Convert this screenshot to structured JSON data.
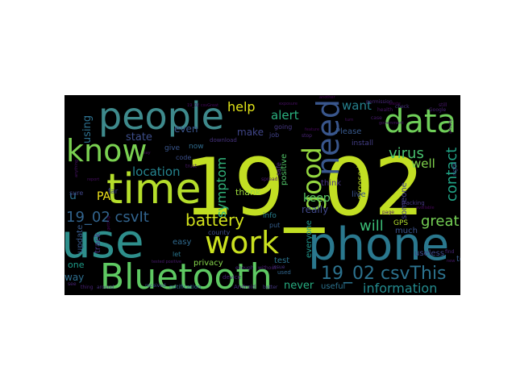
{
  "chart_data": {
    "type": "wordcloud",
    "colormap": "viridis",
    "background": "#000000",
    "words": [
      {
        "text": "19_02",
        "weight": 1.0,
        "color": "#c2df23",
        "rotate": false
      },
      {
        "text": "use",
        "weight": 0.76,
        "color": "#2e8f8c",
        "rotate": false
      },
      {
        "text": "phone",
        "weight": 0.74,
        "color": "#2a788e",
        "rotate": false
      },
      {
        "text": "time",
        "weight": 0.68,
        "color": "#b5de2b",
        "rotate": false
      },
      {
        "text": "people",
        "weight": 0.62,
        "color": "#3e8a8c",
        "rotate": false
      },
      {
        "text": "Bluetooth",
        "weight": 0.6,
        "color": "#5ec962",
        "rotate": false
      },
      {
        "text": "know",
        "weight": 0.52,
        "color": "#7ad151",
        "rotate": false
      },
      {
        "text": "work",
        "weight": 0.52,
        "color": "#cae11f",
        "rotate": false
      },
      {
        "text": "data",
        "weight": 0.54,
        "color": "#6ece58",
        "rotate": false
      },
      {
        "text": "need",
        "weight": 0.5,
        "color": "#39568c",
        "rotate": true
      },
      {
        "text": "good",
        "weight": 0.44,
        "color": "#95d840",
        "rotate": true
      },
      {
        "text": "19_02 csvThis",
        "weight": 0.3,
        "color": "#2c728e",
        "rotate": false
      },
      {
        "text": "battery",
        "weight": 0.26,
        "color": "#d2e21b",
        "rotate": false
      },
      {
        "text": "19_02 csvIt",
        "weight": 0.24,
        "color": "#32648e",
        "rotate": false
      },
      {
        "text": "virus",
        "weight": 0.24,
        "color": "#48c16e",
        "rotate": false
      },
      {
        "text": "contact",
        "weight": 0.24,
        "color": "#20a486",
        "rotate": true
      },
      {
        "text": "great",
        "weight": 0.24,
        "color": "#75d054",
        "rotate": false
      },
      {
        "text": "will",
        "weight": 0.24,
        "color": "#3bbb75",
        "rotate": false
      },
      {
        "text": "information",
        "weight": 0.22,
        "color": "#238a8d",
        "rotate": false
      },
      {
        "text": "location",
        "weight": 0.21,
        "color": "#25838e",
        "rotate": false
      },
      {
        "text": "symptom",
        "weight": 0.22,
        "color": "#31b57b",
        "rotate": true
      },
      {
        "text": "help",
        "weight": 0.22,
        "color": "#e2e418",
        "rotate": false
      },
      {
        "text": "alert",
        "weight": 0.21,
        "color": "#2ab07f",
        "rotate": false
      },
      {
        "text": "want",
        "weight": 0.21,
        "color": "#26828e",
        "rotate": false
      },
      {
        "text": "well",
        "weight": 0.21,
        "color": "#80d34c",
        "rotate": false
      },
      {
        "text": "keep",
        "weight": 0.2,
        "color": "#5cc863",
        "rotate": false
      },
      {
        "text": "state",
        "weight": 0.19,
        "color": "#3d4e8a",
        "rotate": false
      },
      {
        "text": "even",
        "weight": 0.18,
        "color": "#3a548c",
        "rotate": false
      },
      {
        "text": "make",
        "weight": 0.18,
        "color": "#404688",
        "rotate": false
      },
      {
        "text": "using",
        "weight": 0.18,
        "color": "#2d708e",
        "rotate": true
      },
      {
        "text": "way",
        "weight": 0.18,
        "color": "#2e6e8e",
        "rotate": false
      },
      {
        "text": "never",
        "weight": 0.18,
        "color": "#27ad81",
        "rotate": false
      },
      {
        "text": "really",
        "weight": 0.16,
        "color": "#3f4788",
        "rotate": false
      },
      {
        "text": "one",
        "weight": 0.16,
        "color": "#1e9c89",
        "rotate": false
      },
      {
        "text": "PA",
        "weight": 0.16,
        "color": "#f1e51d",
        "rotate": false
      },
      {
        "text": "thank",
        "weight": 0.14,
        "color": "#9bd93c",
        "rotate": false
      },
      {
        "text": "exposed",
        "weight": 0.14,
        "color": "#bddf26",
        "rotate": true
      },
      {
        "text": "positive",
        "weight": 0.13,
        "color": "#52c569",
        "rotate": true
      },
      {
        "text": "think",
        "weight": 0.13,
        "color": "#46337f",
        "rotate": false
      },
      {
        "text": "everyone",
        "weight": 0.13,
        "color": "#1f968b",
        "rotate": true
      },
      {
        "text": "privacy",
        "weight": 0.12,
        "color": "#85d54a",
        "rotate": false
      },
      {
        "text": "easy",
        "weight": 0.12,
        "color": "#306a8e",
        "rotate": false
      },
      {
        "text": "track",
        "weight": 0.12,
        "color": "#453581",
        "rotate": true
      },
      {
        "text": "update",
        "weight": 0.12,
        "color": "#375b8d",
        "rotate": true
      },
      {
        "text": "test",
        "weight": 0.12,
        "color": "#2b748e",
        "rotate": false
      },
      {
        "text": "useless",
        "weight": 0.12,
        "color": "#3e4989",
        "rotate": false
      },
      {
        "text": "number",
        "weight": 0.12,
        "color": "#472d7b",
        "rotate": false
      },
      {
        "text": "tell",
        "weight": 0.12,
        "color": "#365d8d",
        "rotate": false
      },
      {
        "text": "much",
        "weight": 0.12,
        "color": "#3b528b",
        "rotate": false
      },
      {
        "text": "useful",
        "weight": 0.11,
        "color": "#2c728e",
        "rotate": false
      },
      {
        "text": "Please",
        "weight": 0.11,
        "color": "#38598c",
        "rotate": false
      },
      {
        "text": "install",
        "weight": 0.1,
        "color": "#433e85",
        "rotate": false
      },
      {
        "text": "someone",
        "weight": 0.11,
        "color": "#424086",
        "rotate": true
      },
      {
        "text": "live",
        "weight": 0.11,
        "color": "#3b528b",
        "rotate": false
      },
      {
        "text": "GPS",
        "weight": 0.1,
        "color": "#b2dd2d",
        "rotate": false
      },
      {
        "text": "info",
        "weight": 0.1,
        "color": "#277f8e",
        "rotate": false
      },
      {
        "text": "now",
        "weight": 0.1,
        "color": "#2f6c8e",
        "rotate": false
      },
      {
        "text": "give",
        "weight": 0.1,
        "color": "#39568c",
        "rotate": false
      },
      {
        "text": "far",
        "weight": 0.1,
        "color": "#404688",
        "rotate": false
      },
      {
        "text": "u",
        "weight": 0.14,
        "color": "#2d708e",
        "rotate": false
      },
      {
        "text": "let",
        "weight": 0.09,
        "color": "#2a778e",
        "rotate": false
      },
      {
        "text": "sure",
        "weight": 0.08,
        "color": "#404688",
        "rotate": false
      },
      {
        "text": "put",
        "weight": 0.09,
        "color": "#355f8d",
        "rotate": false
      },
      {
        "text": "safe",
        "weight": 0.08,
        "color": "#482576",
        "rotate": true
      },
      {
        "text": "job",
        "weight": 0.08,
        "color": "#414287",
        "rotate": false
      },
      {
        "text": "going",
        "weight": 0.08,
        "color": "#453882",
        "rotate": false
      },
      {
        "text": "code",
        "weight": 0.08,
        "color": "#3c4f8a",
        "rotate": false
      },
      {
        "text": "county",
        "weight": 0.08,
        "color": "#3e4a89",
        "rotate": false
      },
      {
        "text": "used",
        "weight": 0.07,
        "color": "#31668e",
        "rotate": false
      },
      {
        "text": "right",
        "weight": 0.07,
        "color": "#433e85",
        "rotate": true
      },
      {
        "text": "tracking",
        "weight": 0.07,
        "color": "#453781",
        "rotate": false
      },
      {
        "text": "device",
        "weight": 0.06,
        "color": "#482173",
        "rotate": false
      },
      {
        "text": "Android",
        "weight": 0.06,
        "color": "#472c7a",
        "rotate": false
      },
      {
        "text": "notification",
        "weight": 0.06,
        "color": "#31688e",
        "rotate": false
      },
      {
        "text": "download",
        "weight": 0.06,
        "color": "#46327e",
        "rotate": false
      },
      {
        "text": "received",
        "weight": 0.06,
        "color": "#3e4c8a",
        "rotate": false
      },
      {
        "text": "enough",
        "weight": 0.06,
        "color": "#482979",
        "rotate": false
      },
      {
        "text": "issue",
        "weight": 0.06,
        "color": "#463480",
        "rotate": false
      },
      {
        "text": "without",
        "weight": 0.06,
        "color": "#481d6f",
        "rotate": false
      },
      {
        "text": "better",
        "weight": 0.06,
        "color": "#453882",
        "rotate": false
      },
      {
        "text": "stop",
        "weight": 0.06,
        "color": "#482475",
        "rotate": false
      },
      {
        "text": "spread",
        "weight": 0.05,
        "color": "#48186a",
        "rotate": false
      },
      {
        "text": "trust",
        "weight": 0.05,
        "color": "#481769",
        "rotate": false
      },
      {
        "text": "page",
        "weight": 0.05,
        "color": "#471365",
        "rotate": false
      },
      {
        "text": "find",
        "weight": 0.05,
        "color": "#482576",
        "rotate": false
      },
      {
        "text": "still",
        "weight": 0.05,
        "color": "#48186a",
        "rotate": false
      },
      {
        "text": "check",
        "weight": 0.05,
        "color": "#46327e",
        "rotate": false
      },
      {
        "text": "permission",
        "weight": 0.05,
        "color": "#482878",
        "rotate": false
      },
      {
        "text": "case",
        "weight": 0.05,
        "color": "#481a6c",
        "rotate": false
      },
      {
        "text": "health",
        "weight": 0.05,
        "color": "#481467",
        "rotate": false
      },
      {
        "text": "Google",
        "weight": 0.05,
        "color": "#482374",
        "rotate": false
      },
      {
        "text": "new",
        "weight": 0.04,
        "color": "#48186a",
        "rotate": false
      },
      {
        "text": "around",
        "weight": 0.05,
        "color": "#46307e",
        "rotate": false
      },
      {
        "text": "thing",
        "weight": 0.05,
        "color": "#482173",
        "rotate": false
      },
      {
        "text": "see",
        "weight": 0.05,
        "color": "#482576",
        "rotate": false
      },
      {
        "text": "say",
        "weight": 0.04,
        "color": "#470e61",
        "rotate": false
      },
      {
        "text": "tested positive",
        "weight": 0.04,
        "color": "#481b6d",
        "rotate": false
      },
      {
        "text": "turn",
        "weight": 0.04,
        "color": "#471063",
        "rotate": false
      },
      {
        "text": "government",
        "weight": 0.04,
        "color": "#481769",
        "rotate": false
      },
      {
        "text": "feature",
        "weight": 0.04,
        "color": "#46075a",
        "rotate": false
      },
      {
        "text": "exposure",
        "weight": 0.04,
        "color": "#471063",
        "rotate": false
      },
      {
        "text": "another",
        "weight": 0.04,
        "color": "#440154",
        "rotate": false
      },
      {
        "text": "waste",
        "weight": 0.04,
        "color": "#450457",
        "rotate": false
      },
      {
        "text": "report",
        "weight": 0.04,
        "color": "#470d60",
        "rotate": false
      },
      {
        "text": "available",
        "weight": 0.04,
        "color": "#46075a",
        "rotate": false
      },
      {
        "text": "19_02 csvGreat",
        "weight": 0.04,
        "color": "#46085c",
        "rotate": false
      },
      {
        "text": "getting",
        "weight": 0.04,
        "color": "#440154",
        "rotate": true
      },
      {
        "text": "anything",
        "weight": 0.04,
        "color": "#471365",
        "rotate": true
      },
      {
        "text": "already",
        "weight": 0.04,
        "color": "#46075a",
        "rotate": true
      }
    ]
  }
}
